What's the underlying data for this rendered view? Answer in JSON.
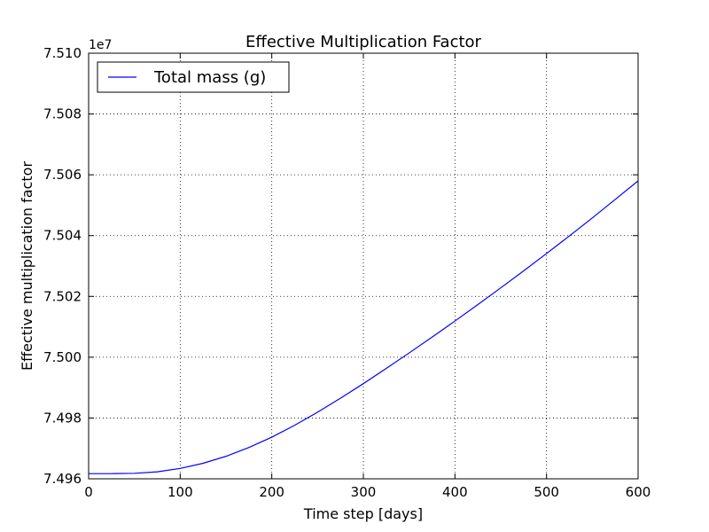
{
  "chart_data": {
    "type": "line",
    "title": "Effective Multiplication Factor",
    "xlabel": "Time step [days]",
    "ylabel": "Effective multiplication factor",
    "y_offset_label": "1e7",
    "xlim": [
      0,
      600
    ],
    "ylim": [
      7.496,
      7.51
    ],
    "x_ticks": [
      0,
      100,
      200,
      300,
      400,
      500,
      600
    ],
    "x_tick_labels": [
      "0",
      "100",
      "200",
      "300",
      "400",
      "500",
      "600"
    ],
    "y_ticks": [
      7.496,
      7.498,
      7.5,
      7.502,
      7.504,
      7.506,
      7.508,
      7.51
    ],
    "y_tick_labels": [
      "7.496",
      "7.498",
      "7.500",
      "7.502",
      "7.504",
      "7.506",
      "7.508",
      "7.510"
    ],
    "grid": true,
    "legend_position": "top-left",
    "series": [
      {
        "name": "Total mass (g)",
        "color": "#0000ff",
        "x": [
          0,
          25,
          50,
          75,
          100,
          125,
          150,
          175,
          200,
          225,
          250,
          275,
          300,
          325,
          350,
          375,
          400,
          425,
          450,
          475,
          500,
          525,
          550,
          575,
          600
        ],
        "y": [
          7.49617,
          7.49617,
          7.49618,
          7.49623,
          7.49634,
          7.49651,
          7.49674,
          7.49703,
          7.49737,
          7.49776,
          7.49819,
          7.49865,
          7.49913,
          7.49963,
          7.50014,
          7.50066,
          7.50119,
          7.50173,
          7.50228,
          7.50284,
          7.50341,
          7.50399,
          7.50458,
          7.50519,
          7.5058
        ]
      }
    ]
  }
}
